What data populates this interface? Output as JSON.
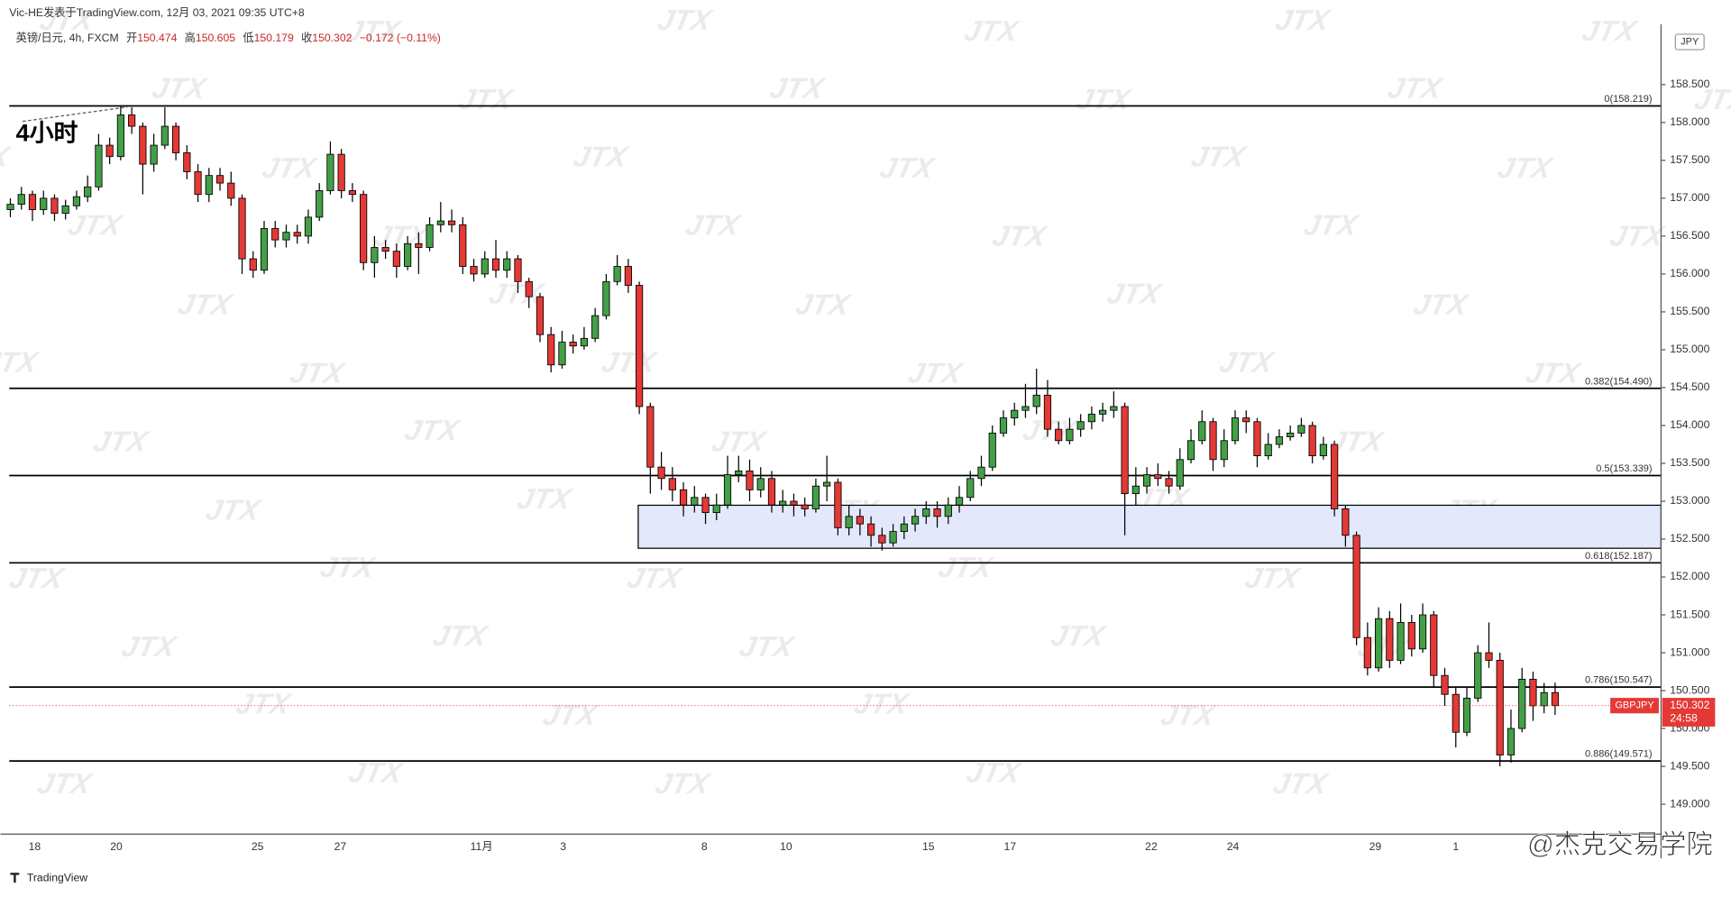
{
  "header": "Vic-HE发表于TradingView.com, 12月 03, 2021 09:35 UTC+8",
  "legend": {
    "symbol": "英镑/日元, 4h, FXCM",
    "open_label": "开",
    "open": 150.474,
    "high_label": "高",
    "high": 150.605,
    "low_label": "低",
    "low": 150.179,
    "close_label": "收",
    "close": 150.302,
    "change": "−0.172 (−0.11%)"
  },
  "annotation": "4小时",
  "watermark": "JTX",
  "footer_logo": "TradingView",
  "footer_watermark": "@杰克交易学院",
  "chart_data": {
    "type": "candlestick",
    "currency": "JPY",
    "up_color": "#43a047",
    "down_color": "#e53935",
    "ylim": [
      148.62,
      159.18
    ],
    "yticks": [
      {
        "value": 149,
        "label": "149.000"
      },
      {
        "value": 149.5,
        "label": "149.500"
      },
      {
        "value": 150,
        "label": "150.000"
      },
      {
        "value": 150.5,
        "label": "150.500"
      },
      {
        "value": 151,
        "label": "151.000"
      },
      {
        "value": 151.5,
        "label": "151.500"
      },
      {
        "value": 152,
        "label": "152.000"
      },
      {
        "value": 152.5,
        "label": "152.500"
      },
      {
        "value": 153,
        "label": "153.000"
      },
      {
        "value": 153.5,
        "label": "153.500"
      },
      {
        "value": 154,
        "label": "154.000"
      },
      {
        "value": 154.5,
        "label": "154.500"
      },
      {
        "value": 155,
        "label": "155.000"
      },
      {
        "value": 155.5,
        "label": "155.500"
      },
      {
        "value": 156,
        "label": "156.000"
      },
      {
        "value": 156.5,
        "label": "156.500"
      },
      {
        "value": 157,
        "label": "157.000"
      },
      {
        "value": 157.5,
        "label": "157.500"
      },
      {
        "value": 158,
        "label": "158.000"
      },
      {
        "value": 158.5,
        "label": "158.500"
      }
    ],
    "xticks": [
      {
        "value": 2.2,
        "label": "18"
      },
      {
        "value": 9.6,
        "label": "20"
      },
      {
        "value": 22.4,
        "label": "25"
      },
      {
        "value": 29.9,
        "label": "27"
      },
      {
        "value": 42.7,
        "label": "11月"
      },
      {
        "value": 50.1,
        "label": "3"
      },
      {
        "value": 62.9,
        "label": "8"
      },
      {
        "value": 70.3,
        "label": "10"
      },
      {
        "value": 83.2,
        "label": "15"
      },
      {
        "value": 90.6,
        "label": "17"
      },
      {
        "value": 103.4,
        "label": "22"
      },
      {
        "value": 110.8,
        "label": "24"
      },
      {
        "value": 123.7,
        "label": "29"
      },
      {
        "value": 131,
        "label": "1"
      }
    ],
    "levels": [
      {
        "value": 158.219,
        "label": "0(158.219)"
      },
      {
        "value": 154.49,
        "label": "0.382(154.490)"
      },
      {
        "value": 153.339,
        "label": "0.5(153.339)"
      },
      {
        "value": 152.187,
        "label": "0.618(152.187)"
      },
      {
        "value": 150.547,
        "label": "0.786(150.547)"
      },
      {
        "value": 149.571,
        "label": "0.886(149.571)"
      }
    ],
    "zone": [
      152.379,
      152.947
    ],
    "zone_start": 57,
    "last_price": 150.302,
    "symbol_tag": "GBPJPY",
    "countdown": "24:58",
    "ohlc": [
      [
        156.85,
        157.0,
        156.75,
        156.92
      ],
      [
        156.92,
        157.15,
        156.85,
        157.05
      ],
      [
        157.05,
        157.1,
        156.7,
        156.85
      ],
      [
        156.85,
        157.1,
        156.78,
        157.0
      ],
      [
        157.0,
        157.05,
        156.7,
        156.8
      ],
      [
        156.8,
        156.98,
        156.72,
        156.9
      ],
      [
        156.9,
        157.1,
        156.85,
        157.02
      ],
      [
        157.02,
        157.3,
        156.95,
        157.15
      ],
      [
        157.15,
        157.85,
        157.1,
        157.7
      ],
      [
        157.7,
        157.8,
        157.45,
        157.55
      ],
      [
        157.55,
        158.22,
        157.5,
        158.1
      ],
      [
        158.1,
        158.2,
        157.85,
        157.95
      ],
      [
        157.95,
        158.0,
        157.05,
        157.45
      ],
      [
        157.45,
        157.85,
        157.35,
        157.7
      ],
      [
        157.7,
        158.2,
        157.65,
        157.95
      ],
      [
        157.95,
        158.0,
        157.5,
        157.6
      ],
      [
        157.6,
        157.7,
        157.25,
        157.35
      ],
      [
        157.35,
        157.45,
        156.95,
        157.05
      ],
      [
        157.05,
        157.4,
        156.95,
        157.3
      ],
      [
        157.3,
        157.4,
        157.1,
        157.2
      ],
      [
        157.2,
        157.35,
        156.9,
        157.0
      ],
      [
        157.0,
        157.05,
        156.0,
        156.2
      ],
      [
        156.2,
        156.3,
        155.95,
        156.05
      ],
      [
        156.05,
        156.7,
        156.0,
        156.6
      ],
      [
        156.6,
        156.7,
        156.35,
        156.45
      ],
      [
        156.45,
        156.65,
        156.35,
        156.55
      ],
      [
        156.55,
        156.65,
        156.4,
        156.5
      ],
      [
        156.5,
        156.85,
        156.4,
        156.75
      ],
      [
        156.75,
        157.2,
        156.7,
        157.1
      ],
      [
        157.1,
        157.75,
        157.05,
        157.58
      ],
      [
        157.58,
        157.65,
        157.0,
        157.1
      ],
      [
        157.1,
        157.2,
        156.95,
        157.05
      ],
      [
        157.05,
        157.1,
        156.05,
        156.15
      ],
      [
        156.15,
        156.5,
        155.95,
        156.35
      ],
      [
        156.35,
        156.45,
        156.2,
        156.3
      ],
      [
        156.3,
        156.4,
        155.95,
        156.1
      ],
      [
        156.1,
        156.5,
        156.05,
        156.4
      ],
      [
        156.4,
        156.55,
        156.0,
        156.35
      ],
      [
        156.35,
        156.75,
        156.3,
        156.65
      ],
      [
        156.65,
        156.95,
        156.55,
        156.7
      ],
      [
        156.7,
        156.85,
        156.55,
        156.65
      ],
      [
        156.65,
        156.75,
        156.0,
        156.1
      ],
      [
        156.1,
        156.2,
        155.9,
        156.0
      ],
      [
        156.0,
        156.3,
        155.95,
        156.2
      ],
      [
        156.2,
        156.45,
        155.95,
        156.05
      ],
      [
        156.05,
        156.3,
        155.95,
        156.2
      ],
      [
        156.2,
        156.25,
        155.75,
        155.9
      ],
      [
        155.9,
        155.95,
        155.55,
        155.7
      ],
      [
        155.7,
        155.75,
        155.1,
        155.2
      ],
      [
        155.2,
        155.3,
        154.7,
        154.8
      ],
      [
        154.8,
        155.25,
        154.75,
        155.1
      ],
      [
        155.1,
        155.2,
        154.95,
        155.05
      ],
      [
        155.05,
        155.3,
        155.0,
        155.15
      ],
      [
        155.15,
        155.55,
        155.1,
        155.45
      ],
      [
        155.45,
        156.0,
        155.4,
        155.9
      ],
      [
        155.9,
        156.25,
        155.85,
        156.1
      ],
      [
        156.1,
        156.2,
        155.75,
        155.85
      ],
      [
        155.85,
        155.9,
        154.15,
        154.25
      ],
      [
        154.25,
        154.3,
        153.1,
        153.45
      ],
      [
        153.45,
        153.65,
        153.15,
        153.3
      ],
      [
        153.3,
        153.45,
        153.0,
        153.15
      ],
      [
        153.15,
        153.25,
        152.8,
        152.95
      ],
      [
        152.95,
        153.2,
        152.85,
        153.05
      ],
      [
        153.05,
        153.1,
        152.7,
        152.85
      ],
      [
        152.85,
        153.1,
        152.75,
        152.95
      ],
      [
        152.95,
        153.6,
        152.9,
        153.35
      ],
      [
        153.35,
        153.6,
        153.25,
        153.4
      ],
      [
        153.4,
        153.55,
        153.0,
        153.15
      ],
      [
        153.15,
        153.45,
        153.05,
        153.3
      ],
      [
        153.3,
        153.4,
        152.85,
        152.95
      ],
      [
        152.95,
        153.15,
        152.85,
        153.0
      ],
      [
        153.0,
        153.1,
        152.8,
        152.95
      ],
      [
        152.95,
        153.05,
        152.8,
        152.9
      ],
      [
        152.9,
        153.3,
        152.85,
        153.2
      ],
      [
        153.2,
        153.6,
        153.0,
        153.25
      ],
      [
        153.25,
        153.3,
        152.55,
        152.65
      ],
      [
        152.65,
        152.95,
        152.55,
        152.8
      ],
      [
        152.8,
        152.9,
        152.55,
        152.7
      ],
      [
        152.7,
        152.8,
        152.4,
        152.55
      ],
      [
        152.55,
        152.65,
        152.35,
        152.45
      ],
      [
        152.45,
        152.7,
        152.4,
        152.6
      ],
      [
        152.6,
        152.8,
        152.5,
        152.7
      ],
      [
        152.7,
        152.9,
        152.6,
        152.8
      ],
      [
        152.8,
        153.0,
        152.7,
        152.9
      ],
      [
        152.9,
        153.0,
        152.65,
        152.8
      ],
      [
        152.8,
        153.05,
        152.7,
        152.95
      ],
      [
        152.95,
        153.2,
        152.85,
        153.05
      ],
      [
        153.05,
        153.4,
        153.0,
        153.3
      ],
      [
        153.3,
        153.6,
        153.2,
        153.45
      ],
      [
        153.45,
        154.0,
        153.4,
        153.9
      ],
      [
        153.9,
        154.2,
        153.85,
        154.1
      ],
      [
        154.1,
        154.3,
        154.0,
        154.2
      ],
      [
        154.2,
        154.55,
        154.1,
        154.25
      ],
      [
        154.25,
        154.75,
        154.15,
        154.4
      ],
      [
        154.4,
        154.6,
        153.85,
        153.95
      ],
      [
        153.95,
        154.05,
        153.75,
        153.8
      ],
      [
        153.8,
        154.1,
        153.75,
        153.95
      ],
      [
        153.95,
        154.15,
        153.85,
        154.05
      ],
      [
        154.05,
        154.25,
        153.95,
        154.15
      ],
      [
        154.15,
        154.3,
        154.05,
        154.2
      ],
      [
        154.2,
        154.45,
        154.1,
        154.25
      ],
      [
        154.25,
        154.3,
        152.55,
        153.1
      ],
      [
        153.1,
        153.45,
        152.95,
        153.2
      ],
      [
        153.2,
        153.45,
        153.1,
        153.35
      ],
      [
        153.35,
        153.5,
        153.2,
        153.3
      ],
      [
        153.3,
        153.4,
        153.1,
        153.2
      ],
      [
        153.2,
        153.7,
        153.15,
        153.55
      ],
      [
        153.55,
        153.95,
        153.5,
        153.8
      ],
      [
        153.8,
        154.2,
        153.75,
        154.05
      ],
      [
        154.05,
        154.1,
        153.4,
        153.55
      ],
      [
        153.55,
        153.95,
        153.45,
        153.8
      ],
      [
        153.8,
        154.2,
        153.75,
        154.1
      ],
      [
        154.1,
        154.2,
        153.9,
        154.05
      ],
      [
        154.05,
        154.1,
        153.45,
        153.6
      ],
      [
        153.6,
        153.9,
        153.55,
        153.75
      ],
      [
        153.75,
        153.95,
        153.7,
        153.85
      ],
      [
        153.85,
        154.0,
        153.8,
        153.9
      ],
      [
        153.9,
        154.1,
        153.85,
        154.0
      ],
      [
        154.0,
        154.05,
        153.5,
        153.6
      ],
      [
        153.6,
        153.85,
        153.55,
        153.75
      ],
      [
        153.75,
        153.8,
        152.8,
        152.9
      ],
      [
        152.9,
        152.95,
        152.4,
        152.55
      ],
      [
        152.55,
        152.6,
        151.1,
        151.2
      ],
      [
        151.2,
        151.4,
        150.7,
        150.8
      ],
      [
        150.8,
        151.6,
        150.75,
        151.45
      ],
      [
        151.45,
        151.55,
        150.8,
        150.9
      ],
      [
        150.9,
        151.65,
        150.85,
        151.4
      ],
      [
        151.4,
        151.5,
        150.95,
        151.05
      ],
      [
        151.05,
        151.65,
        151.0,
        151.5
      ],
      [
        151.5,
        151.55,
        150.55,
        150.7
      ],
      [
        150.7,
        150.8,
        150.3,
        150.45
      ],
      [
        150.45,
        150.55,
        149.75,
        149.95
      ],
      [
        149.95,
        150.55,
        149.9,
        150.4
      ],
      [
        150.4,
        151.1,
        150.35,
        151.0
      ],
      [
        151.0,
        151.4,
        150.8,
        150.9
      ],
      [
        150.9,
        151.0,
        149.5,
        149.65
      ],
      [
        149.65,
        150.25,
        149.55,
        150.0
      ],
      [
        150.0,
        150.8,
        149.95,
        150.65
      ],
      [
        150.65,
        150.75,
        150.1,
        150.3
      ],
      [
        150.3,
        150.6,
        150.2,
        150.474
      ],
      [
        150.474,
        150.605,
        150.179,
        150.302
      ]
    ]
  }
}
